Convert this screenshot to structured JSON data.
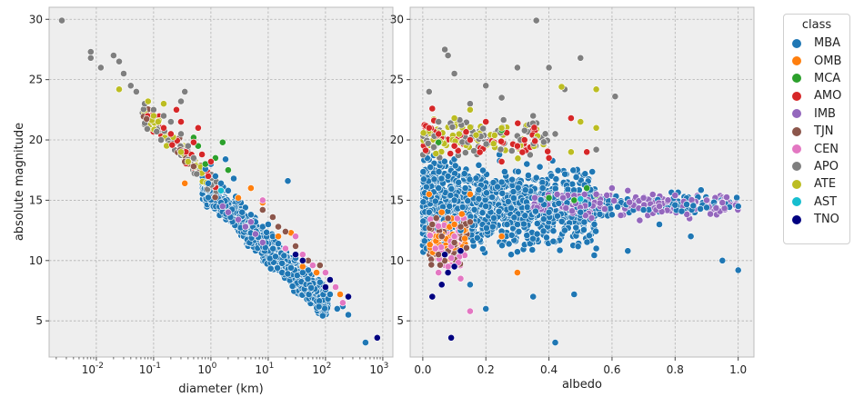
{
  "chart_data": [
    {
      "type": "scatter",
      "title": "",
      "xlabel": "diameter (km)",
      "ylabel": "absolute magnitude",
      "x_scale": "log",
      "xlim": [
        0.0015,
        1500
      ],
      "ylim": [
        2,
        31
      ],
      "x_ticks": [
        {
          "value": 0.01,
          "base": "10",
          "exp": "-2"
        },
        {
          "value": 0.1,
          "base": "10",
          "exp": "-1"
        },
        {
          "value": 1,
          "base": "10",
          "exp": "0"
        },
        {
          "value": 10,
          "base": "10",
          "exp": "1"
        },
        {
          "value": 100,
          "base": "10",
          "exp": "2"
        },
        {
          "value": 1000,
          "base": "10",
          "exp": "3"
        }
      ],
      "y_ticks": [
        5,
        10,
        15,
        20,
        25,
        30
      ],
      "grid": true,
      "series": [
        {
          "name": "MBA",
          "points": [
            [
              0.8,
              17.6
            ],
            [
              1.2,
              17.0
            ],
            [
              1.5,
              16.4
            ],
            [
              2,
              15.8
            ],
            [
              3,
              15.0
            ],
            [
              4,
              14.4
            ],
            [
              5,
              13.8
            ],
            [
              8,
              12.8
            ],
            [
              12,
              12.0
            ],
            [
              20,
              11.0
            ],
            [
              30,
              10.2
            ],
            [
              50,
              9.2
            ],
            [
              80,
              8.2
            ],
            [
              120,
              7.2
            ],
            [
              200,
              6.2
            ],
            [
              250,
              5.5
            ],
            [
              500,
              3.2
            ],
            [
              1.0,
              18.0
            ],
            [
              2.5,
              16.8
            ],
            [
              6,
              13.2
            ],
            [
              25,
              9.4
            ],
            [
              100,
              7.6
            ],
            [
              0.9,
              16.4
            ],
            [
              3.5,
              14.0
            ],
            [
              15,
              11.4
            ],
            [
              1.8,
              18.4
            ],
            [
              40,
              9.0
            ],
            [
              22,
              16.6
            ],
            [
              160,
              6.0
            ],
            [
              2.2,
              13.6
            ],
            [
              10,
              13.0
            ]
          ]
        },
        {
          "name": "OMB",
          "points": [
            [
              0.35,
              16.4
            ],
            [
              5,
              16.0
            ],
            [
              15,
              12.0
            ],
            [
              40,
              9.5
            ],
            [
              3,
              15.2
            ],
            [
              8,
              14.8
            ],
            [
              25,
              12.3
            ],
            [
              70,
              9.0
            ],
            [
              180,
              7.2
            ]
          ]
        },
        {
          "name": "MCA",
          "points": [
            [
              0.6,
              19.5
            ],
            [
              1.2,
              18.5
            ],
            [
              0.8,
              18.0
            ],
            [
              1.6,
              19.8
            ],
            [
              0.5,
              20.2
            ],
            [
              2,
              17.5
            ]
          ]
        },
        {
          "name": "AMO",
          "points": [
            [
              0.2,
              20.5
            ],
            [
              0.5,
              19.8
            ],
            [
              0.7,
              18.8
            ],
            [
              1.0,
              18.2
            ],
            [
              0.3,
              21.5
            ],
            [
              0.25,
              22.5
            ],
            [
              0.15,
              21.0
            ],
            [
              0.6,
              21.0
            ],
            [
              0.9,
              17.0
            ]
          ]
        },
        {
          "name": "IMB",
          "points": [
            [
              2,
              14.0
            ],
            [
              3,
              13.4
            ],
            [
              4,
              12.8
            ],
            [
              5,
              13.2
            ],
            [
              8,
              11.5
            ],
            [
              1.6,
              14.5
            ],
            [
              6,
              12.2
            ]
          ]
        },
        {
          "name": "TJN",
          "points": [
            [
              0.35,
              18.2
            ],
            [
              0.5,
              17.8
            ],
            [
              8,
              14.2
            ],
            [
              12,
              13.6
            ],
            [
              15,
              12.8
            ],
            [
              20,
              12.4
            ],
            [
              30,
              11.2
            ],
            [
              50,
              10.0
            ],
            [
              80,
              9.6
            ]
          ]
        },
        {
          "name": "CEN",
          "points": [
            [
              20,
              11.0
            ],
            [
              40,
              10.5
            ],
            [
              60,
              9.6
            ],
            [
              100,
              9.0
            ],
            [
              150,
              7.8
            ],
            [
              200,
              6.5
            ],
            [
              30,
              12.0
            ],
            [
              8,
              15.0
            ]
          ]
        },
        {
          "name": "APO",
          "points": [
            [
              0.0025,
              29.9
            ],
            [
              0.008,
              27.3
            ],
            [
              0.008,
              26.8
            ],
            [
              0.012,
              26.0
            ],
            [
              0.02,
              27.0
            ],
            [
              0.025,
              26.5
            ],
            [
              0.03,
              25.5
            ],
            [
              0.04,
              24.5
            ],
            [
              0.05,
              24.0
            ],
            [
              0.07,
              23.0
            ],
            [
              0.1,
              22.5
            ],
            [
              0.15,
              22.0
            ],
            [
              0.2,
              21.5
            ],
            [
              0.3,
              20.5
            ],
            [
              0.4,
              19.5
            ],
            [
              0.5,
              18.5
            ],
            [
              0.3,
              23.2
            ],
            [
              0.35,
              24.0
            ]
          ]
        },
        {
          "name": "ATE",
          "points": [
            [
              0.025,
              24.2
            ],
            [
              0.08,
              23.2
            ],
            [
              0.1,
              22.0
            ],
            [
              0.12,
              21.5
            ],
            [
              0.3,
              19.0
            ],
            [
              0.4,
              18.2
            ],
            [
              0.15,
              23.0
            ]
          ]
        },
        {
          "name": "AST",
          "points": [
            [
              1.5,
              15.8
            ]
          ]
        },
        {
          "name": "TNO",
          "points": [
            [
              30,
              10.5
            ],
            [
              100,
              7.8
            ],
            [
              250,
              7.0
            ],
            [
              800,
              3.6
            ],
            [
              40,
              10.0
            ],
            [
              120,
              8.4
            ]
          ]
        }
      ]
    },
    {
      "type": "scatter",
      "title": "",
      "xlabel": "albedo",
      "ylabel": "",
      "xlim": [
        -0.04,
        1.05
      ],
      "ylim": [
        2,
        31
      ],
      "x_ticks": [
        "0.0",
        "0.2",
        "0.4",
        "0.6",
        "0.8",
        "1.0"
      ],
      "y_ticks": [
        5,
        10,
        15,
        20,
        25,
        30
      ],
      "grid": true,
      "series": [
        {
          "name": "MBA",
          "points": [
            [
              0.05,
              16
            ],
            [
              0.1,
              15
            ],
            [
              0.2,
              14.5
            ],
            [
              0.3,
              13
            ],
            [
              0.4,
              14
            ],
            [
              0.5,
              14
            ],
            [
              0.6,
              13.8
            ],
            [
              0.7,
              14.2
            ],
            [
              0.8,
              14.6
            ],
            [
              0.9,
              14.4
            ],
            [
              1.0,
              14.5
            ],
            [
              1.0,
              9.2
            ],
            [
              0.42,
              3.2
            ],
            [
              0.2,
              6.0
            ],
            [
              0.35,
              7.0
            ],
            [
              0.15,
              8.0
            ],
            [
              0.08,
              17
            ],
            [
              0.25,
              16.5
            ],
            [
              0.45,
              12.5
            ],
            [
              0.55,
              11.0
            ],
            [
              0.65,
              10.8
            ],
            [
              0.75,
              13.0
            ],
            [
              0.85,
              12.0
            ],
            [
              0.95,
              10.0
            ],
            [
              0.12,
              12.5
            ],
            [
              0.28,
              10.5
            ],
            [
              0.38,
              16.0
            ],
            [
              0.02,
              14.0
            ],
            [
              0.48,
              7.2
            ],
            [
              0.33,
              18.0
            ]
          ]
        },
        {
          "name": "OMB",
          "points": [
            [
              0.02,
              15.5
            ],
            [
              0.06,
              14.0
            ],
            [
              0.1,
              13.0
            ],
            [
              0.05,
              12.0
            ],
            [
              0.15,
              15.5
            ],
            [
              0.25,
              12.0
            ],
            [
              0.3,
              9.0
            ]
          ]
        },
        {
          "name": "MCA",
          "points": [
            [
              0.48,
              15.0
            ],
            [
              0.52,
              16.0
            ],
            [
              0.4,
              15.2
            ],
            [
              0.55,
              15.4
            ],
            [
              0.25,
              20.8
            ],
            [
              0.05,
              19.8
            ]
          ]
        },
        {
          "name": "AMO",
          "points": [
            [
              0.02,
              21.0
            ],
            [
              0.05,
              20.5
            ],
            [
              0.1,
              19.5
            ],
            [
              0.15,
              20.0
            ],
            [
              0.2,
              21.5
            ],
            [
              0.3,
              19.5
            ],
            [
              0.4,
              18.5
            ],
            [
              0.47,
              21.8
            ],
            [
              0.52,
              19.0
            ],
            [
              0.03,
              22.6
            ],
            [
              0.25,
              18.2
            ]
          ]
        },
        {
          "name": "IMB",
          "points": [
            [
              0.55,
              15.5
            ],
            [
              0.65,
              15.8
            ],
            [
              0.7,
              15.2
            ],
            [
              0.8,
              15.4
            ],
            [
              0.9,
              15.0
            ],
            [
              0.95,
              14.8
            ],
            [
              0.6,
              16.0
            ],
            [
              0.75,
              14.5
            ]
          ]
        },
        {
          "name": "TJN",
          "points": [
            [
              0.03,
              13.0
            ],
            [
              0.06,
              12.0
            ],
            [
              0.08,
              13.5
            ],
            [
              0.1,
              11.5
            ],
            [
              0.12,
              12.8
            ],
            [
              0.15,
              13.2
            ],
            [
              0.05,
              10.5
            ]
          ]
        },
        {
          "name": "CEN",
          "points": [
            [
              0.03,
              7.0
            ],
            [
              0.05,
              9.0
            ],
            [
              0.07,
              10.5
            ],
            [
              0.1,
              12.0
            ],
            [
              0.12,
              8.5
            ],
            [
              0.15,
              5.8
            ],
            [
              0.04,
              11.0
            ]
          ]
        },
        {
          "name": "APO",
          "points": [
            [
              0.36,
              29.9
            ],
            [
              0.08,
              27.0
            ],
            [
              0.07,
              27.5
            ],
            [
              0.1,
              25.5
            ],
            [
              0.2,
              24.5
            ],
            [
              0.3,
              26.0
            ],
            [
              0.4,
              26.0
            ],
            [
              0.5,
              26.8
            ],
            [
              0.61,
              23.6
            ],
            [
              0.45,
              24.2
            ],
            [
              0.02,
              24.0
            ],
            [
              0.15,
              23.0
            ],
            [
              0.35,
              22.0
            ],
            [
              0.25,
              23.5
            ],
            [
              0.55,
              19.2
            ],
            [
              0.42,
              20.5
            ],
            [
              0.05,
              21.5
            ]
          ]
        },
        {
          "name": "ATE",
          "points": [
            [
              0.44,
              24.4
            ],
            [
              0.55,
              24.2
            ],
            [
              0.5,
              21.5
            ],
            [
              0.55,
              21.0
            ],
            [
              0.15,
              22.5
            ],
            [
              0.25,
              21.0
            ],
            [
              0.1,
              21.8
            ],
            [
              0.47,
              19.0
            ]
          ]
        },
        {
          "name": "AST",
          "points": [
            [
              0.5,
              15.1
            ]
          ]
        },
        {
          "name": "TNO",
          "points": [
            [
              0.03,
              7.0
            ],
            [
              0.06,
              8.0
            ],
            [
              0.09,
              3.6
            ],
            [
              0.1,
              9.5
            ],
            [
              0.07,
              10.5
            ],
            [
              0.12,
              10.8
            ],
            [
              0.08,
              9.0
            ]
          ]
        }
      ]
    }
  ],
  "legend": {
    "title": "class",
    "items": [
      {
        "label": "MBA",
        "color": "#1f77b4"
      },
      {
        "label": "OMB",
        "color": "#ff7f0e"
      },
      {
        "label": "MCA",
        "color": "#2ca02c"
      },
      {
        "label": "AMO",
        "color": "#d62728"
      },
      {
        "label": "IMB",
        "color": "#9467bd"
      },
      {
        "label": "TJN",
        "color": "#8c564b"
      },
      {
        "label": "CEN",
        "color": "#e377c2"
      },
      {
        "label": "APO",
        "color": "#7f7f7f"
      },
      {
        "label": "ATE",
        "color": "#bcbd22"
      },
      {
        "label": "AST",
        "color": "#17becf"
      },
      {
        "label": "TNO",
        "color": "#000080"
      }
    ]
  }
}
